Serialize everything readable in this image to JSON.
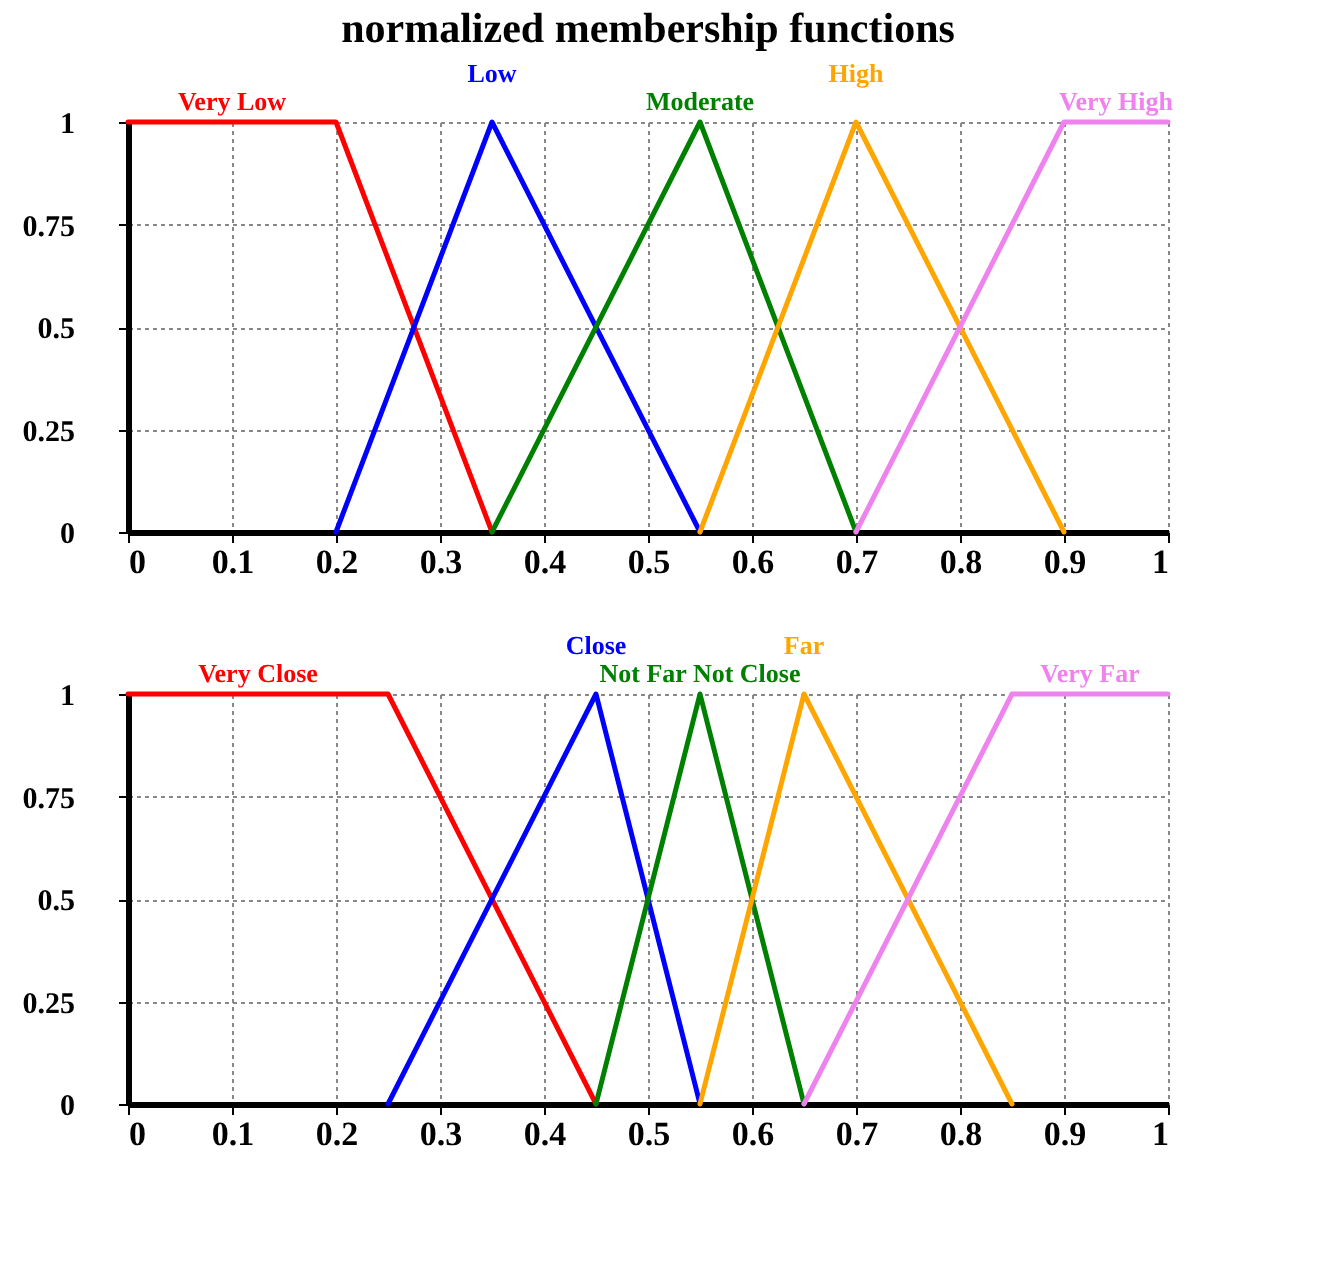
{
  "chart_data": [
    {
      "type": "line",
      "title": "normalized membership functions",
      "xlim": [
        0,
        1
      ],
      "ylim": [
        0,
        1
      ],
      "xticks": [
        0,
        0.1,
        0.2,
        0.3,
        0.4,
        0.5,
        0.6,
        0.7,
        0.8,
        0.9,
        1
      ],
      "yticks": [
        0,
        0.25,
        0.5,
        0.75,
        1
      ],
      "grid": true,
      "legend": false,
      "series": [
        {
          "name": "Very Low",
          "color": "#ff0000",
          "x": [
            0,
            0.2,
            0.35
          ],
          "values": [
            1,
            1,
            0
          ]
        },
        {
          "name": "Low",
          "color": "#0000ff",
          "x": [
            0.2,
            0.35,
            0.55
          ],
          "values": [
            0,
            1,
            0
          ]
        },
        {
          "name": "Moderate",
          "color": "#008000",
          "x": [
            0.35,
            0.55,
            0.7
          ],
          "values": [
            0,
            1,
            0
          ]
        },
        {
          "name": "High",
          "color": "#ffa500",
          "x": [
            0.55,
            0.7,
            0.9
          ],
          "values": [
            0,
            1,
            0
          ]
        },
        {
          "name": "Very High",
          "color": "#ee82ee",
          "x": [
            0.7,
            0.9,
            1
          ],
          "values": [
            0,
            1,
            1
          ]
        }
      ]
    },
    {
      "type": "line",
      "xlim": [
        0,
        1
      ],
      "ylim": [
        0,
        1
      ],
      "xticks": [
        0,
        0.1,
        0.2,
        0.3,
        0.4,
        0.5,
        0.6,
        0.7,
        0.8,
        0.9,
        1
      ],
      "yticks": [
        0,
        0.25,
        0.5,
        0.75,
        1
      ],
      "grid": true,
      "legend": false,
      "series": [
        {
          "name": "Very Close",
          "color": "#ff0000",
          "x": [
            0,
            0.25,
            0.45
          ],
          "values": [
            1,
            1,
            0
          ]
        },
        {
          "name": "Close",
          "color": "#0000ff",
          "x": [
            0.25,
            0.45,
            0.55
          ],
          "values": [
            0,
            1,
            0
          ]
        },
        {
          "name": "Not Far Not Close",
          "color": "#008000",
          "x": [
            0.45,
            0.55,
            0.65
          ],
          "values": [
            0,
            1,
            0
          ]
        },
        {
          "name": "Far",
          "color": "#ffa500",
          "x": [
            0.55,
            0.65,
            0.85
          ],
          "values": [
            0,
            1,
            0
          ]
        },
        {
          "name": "Very Far",
          "color": "#ee82ee",
          "x": [
            0.65,
            0.85,
            1
          ],
          "values": [
            0,
            1,
            1
          ]
        }
      ]
    }
  ]
}
